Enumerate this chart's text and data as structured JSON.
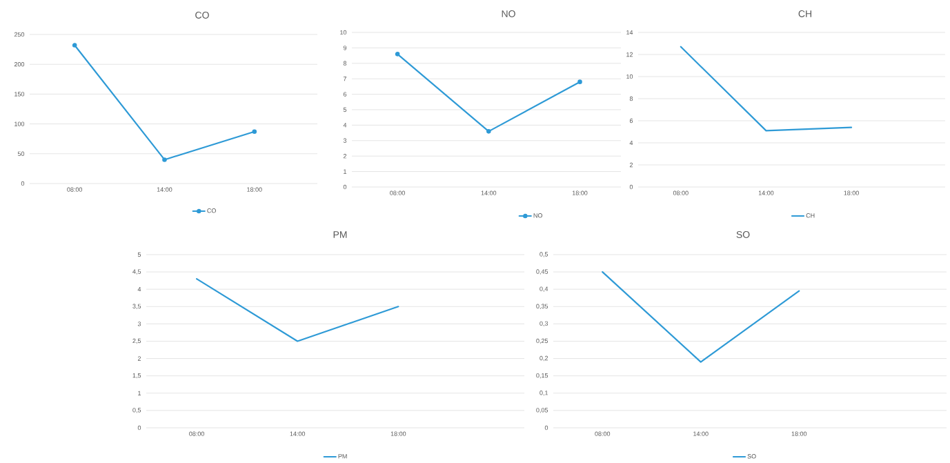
{
  "chart_data": [
    {
      "type": "line",
      "title": "CO",
      "categories": [
        "08:00",
        "14:00",
        "18:00"
      ],
      "series": [
        {
          "name": "CO",
          "color": "#2e9ad6",
          "values": [
            232,
            40,
            87
          ]
        }
      ],
      "ylim": [
        0,
        250
      ],
      "yticks": [
        0,
        50,
        100,
        150,
        200,
        250
      ],
      "grid": "y",
      "legend": "bottom",
      "marker": "circle"
    },
    {
      "type": "line",
      "title": "NO",
      "categories": [
        "08:00",
        "14:00",
        "18:00"
      ],
      "series": [
        {
          "name": "NO",
          "color": "#2e9ad6",
          "values": [
            8.6,
            3.6,
            6.8
          ]
        }
      ],
      "ylim": [
        0,
        10
      ],
      "yticks": [
        0,
        1,
        2,
        3,
        4,
        5,
        6,
        7,
        8,
        9,
        10
      ],
      "grid": "y",
      "legend": "bottom",
      "marker": "circle"
    },
    {
      "type": "line",
      "title": "CH",
      "categories": [
        "08:00",
        "14:00",
        "18:00"
      ],
      "series": [
        {
          "name": "CH",
          "color": "#2e9ad6",
          "values": [
            12.7,
            5.1,
            5.4
          ]
        }
      ],
      "ylim": [
        0,
        14
      ],
      "yticks": [
        0,
        2,
        4,
        6,
        8,
        10,
        12,
        14
      ],
      "grid": "y",
      "legend": "bottom",
      "marker": "none"
    },
    {
      "type": "line",
      "title": "PM",
      "categories": [
        "08:00",
        "14:00",
        "18:00"
      ],
      "series": [
        {
          "name": "PM",
          "color": "#2e9ad6",
          "values": [
            4.3,
            2.5,
            3.5
          ]
        }
      ],
      "ylim": [
        0,
        5
      ],
      "yticks": [
        0,
        {
          "value": 0.5,
          "label": "0,5"
        },
        1,
        {
          "value": 1.5,
          "label": "1,5"
        },
        2,
        {
          "value": 2.5,
          "label": "2,5"
        },
        3,
        {
          "value": 3.5,
          "label": "3,5"
        },
        4,
        {
          "value": 4.5,
          "label": "4,5"
        },
        5
      ],
      "grid": "y",
      "legend": "bottom",
      "marker": "none"
    },
    {
      "type": "line",
      "title": "SO",
      "categories": [
        "08:00",
        "14:00",
        "18:00"
      ],
      "series": [
        {
          "name": "SO",
          "color": "#2e9ad6",
          "values": [
            0.45,
            0.19,
            0.395
          ]
        }
      ],
      "ylim": [
        0,
        0.5
      ],
      "yticks": [
        0,
        {
          "value": 0.05,
          "label": "0,05"
        },
        {
          "value": 0.1,
          "label": "0,1"
        },
        {
          "value": 0.15,
          "label": "0,15"
        },
        {
          "value": 0.2,
          "label": "0,2"
        },
        {
          "value": 0.25,
          "label": "0,25"
        },
        {
          "value": 0.3,
          "label": "0,3"
        },
        {
          "value": 0.35,
          "label": "0,35"
        },
        {
          "value": 0.4,
          "label": "0,4"
        },
        {
          "value": 0.45,
          "label": "0,45"
        },
        {
          "value": 0.5,
          "label": "0,5"
        }
      ],
      "grid": "y",
      "legend": "bottom",
      "marker": "none"
    }
  ]
}
